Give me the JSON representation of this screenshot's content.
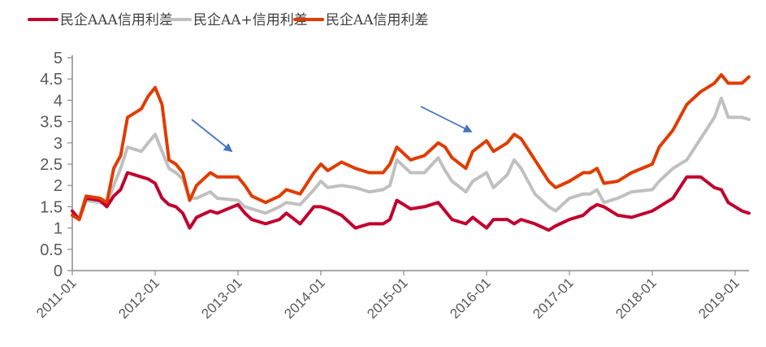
{
  "chart_data": {
    "type": "line",
    "title": "",
    "xlabel": "",
    "ylabel": "",
    "ylim": [
      0,
      5
    ],
    "yticks": [
      "0",
      "0.5",
      "1",
      "1.5",
      "2",
      "2.5",
      "3",
      "3.5",
      "4",
      "4.5",
      "5"
    ],
    "xticks": [
      "2011-01",
      "2012-01",
      "2013-01",
      "2014-01",
      "2015-01",
      "2016-01",
      "2017-01",
      "2018-01",
      "2019-01"
    ],
    "grid": false,
    "legend_position": "top",
    "x": [
      "2011-01",
      "2011-02",
      "2011-03",
      "2011-05",
      "2011-06",
      "2011-07",
      "2011-08",
      "2011-09",
      "2011-11",
      "2011-12",
      "2012-01",
      "2012-02",
      "2012-03",
      "2012-04",
      "2012-05",
      "2012-06",
      "2012-07",
      "2012-09",
      "2012-10",
      "2013-01",
      "2013-02",
      "2013-03",
      "2013-05",
      "2013-07",
      "2013-08",
      "2013-10",
      "2013-12",
      "2014-01",
      "2014-02",
      "2014-04",
      "2014-06",
      "2014-08",
      "2014-10",
      "2014-11",
      "2014-12",
      "2015-02",
      "2015-04",
      "2015-06",
      "2015-07",
      "2015-08",
      "2015-10",
      "2015-11",
      "2016-01",
      "2016-02",
      "2016-04",
      "2016-05",
      "2016-06",
      "2016-08",
      "2016-10",
      "2016-11",
      "2017-01",
      "2017-03",
      "2017-04",
      "2017-05",
      "2017-06",
      "2017-08",
      "2017-10",
      "2018-01",
      "2018-02",
      "2018-04",
      "2018-06",
      "2018-08",
      "2018-10",
      "2018-11",
      "2018-12",
      "2019-02",
      "2019-03"
    ],
    "series": [
      {
        "name": "民企AAA信用利差",
        "color": "#C0002E",
        "values": [
          1.4,
          1.2,
          1.7,
          1.65,
          1.5,
          1.75,
          1.9,
          2.3,
          2.2,
          2.15,
          2.05,
          1.7,
          1.55,
          1.5,
          1.35,
          1.0,
          1.25,
          1.4,
          1.35,
          1.55,
          1.35,
          1.2,
          1.1,
          1.2,
          1.35,
          1.1,
          1.5,
          1.5,
          1.45,
          1.3,
          1.0,
          1.1,
          1.1,
          1.2,
          1.65,
          1.45,
          1.5,
          1.6,
          1.4,
          1.2,
          1.1,
          1.25,
          1.0,
          1.2,
          1.2,
          1.1,
          1.2,
          1.1,
          0.95,
          1.05,
          1.2,
          1.3,
          1.45,
          1.55,
          1.5,
          1.3,
          1.25,
          1.4,
          1.5,
          1.7,
          2.2,
          2.2,
          1.95,
          1.9,
          1.6,
          1.4,
          1.35
        ]
      },
      {
        "name": "民企AA+信用利差",
        "color": "#C0C0C0",
        "values": [
          1.3,
          1.2,
          1.65,
          1.6,
          1.55,
          2.0,
          2.4,
          2.9,
          2.8,
          3.0,
          3.2,
          2.8,
          2.4,
          2.3,
          2.15,
          1.7,
          1.7,
          1.85,
          1.7,
          1.65,
          1.5,
          1.45,
          1.35,
          1.5,
          1.6,
          1.55,
          1.9,
          2.1,
          1.95,
          2.0,
          1.95,
          1.85,
          1.9,
          2.0,
          2.6,
          2.3,
          2.3,
          2.65,
          2.35,
          2.1,
          1.85,
          2.1,
          2.3,
          1.95,
          2.25,
          2.6,
          2.4,
          1.8,
          1.5,
          1.4,
          1.7,
          1.8,
          1.8,
          1.9,
          1.6,
          1.7,
          1.85,
          1.9,
          2.1,
          2.4,
          2.6,
          3.1,
          3.6,
          4.05,
          3.6,
          3.6,
          3.55
        ]
      },
      {
        "name": "民企AA信用利差",
        "color": "#E03C00",
        "values": [
          1.3,
          1.2,
          1.75,
          1.7,
          1.6,
          2.4,
          2.7,
          3.6,
          3.8,
          4.1,
          4.3,
          3.9,
          2.6,
          2.5,
          2.3,
          1.65,
          2.0,
          2.3,
          2.2,
          2.2,
          2.0,
          1.75,
          1.6,
          1.75,
          1.9,
          1.8,
          2.3,
          2.5,
          2.35,
          2.55,
          2.4,
          2.3,
          2.3,
          2.5,
          2.9,
          2.6,
          2.7,
          3.0,
          2.9,
          2.65,
          2.4,
          2.8,
          3.05,
          2.8,
          3.0,
          3.2,
          3.1,
          2.6,
          2.1,
          1.95,
          2.1,
          2.3,
          2.3,
          2.4,
          2.05,
          2.1,
          2.3,
          2.5,
          2.9,
          3.3,
          3.9,
          4.2,
          4.4,
          4.6,
          4.4,
          4.4,
          4.55
        ]
      }
    ],
    "arrow_color": "#4472C4"
  }
}
